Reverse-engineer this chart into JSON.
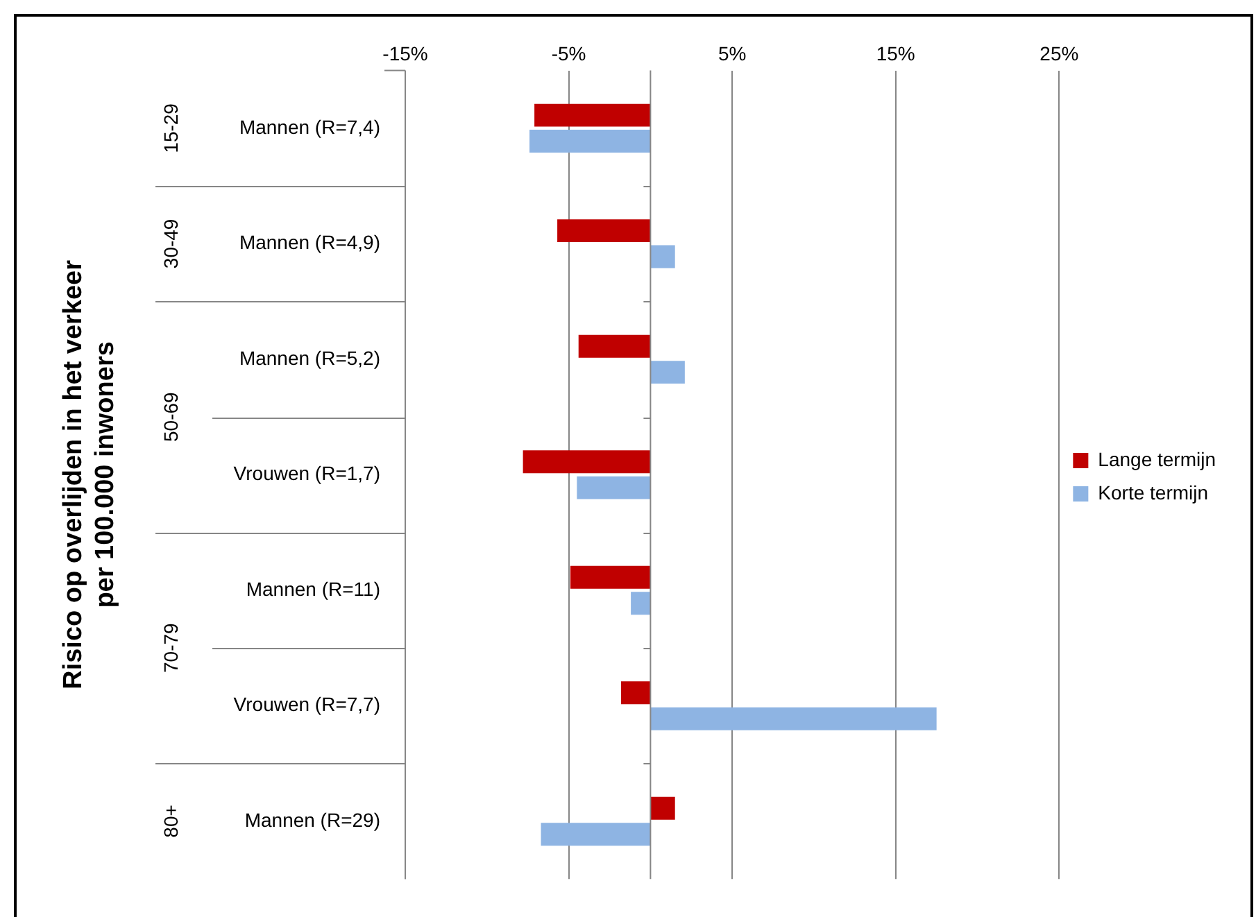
{
  "chart_data": {
    "type": "bar",
    "orientation": "horizontal",
    "ylabel": "Risico op overlijden in het verkeer\nper 100.000 inwoners",
    "categories": [
      "Mannen (R=7,4)",
      "Mannen (R=4,9)",
      "Mannen (R=5,2)",
      "Vrouwen (R=1,7)",
      "Mannen (R=11)",
      "Vrouwen (R=7,7)",
      "Mannen (R=29)"
    ],
    "series": [
      {
        "name": "Lange termijn",
        "color": "#c00000",
        "values": [
          -7.1,
          -5.7,
          -4.4,
          -7.8,
          -4.9,
          -1.8,
          1.5
        ]
      },
      {
        "name": "Korte termijn",
        "color": "#8eb4e3",
        "values": [
          -7.4,
          1.5,
          2.1,
          -4.5,
          -1.2,
          17.5,
          -6.7
        ]
      }
    ],
    "xlim": [
      -15,
      25
    ],
    "xticks": [
      {
        "value": -15,
        "label": "-15%"
      },
      {
        "value": -5,
        "label": "-5%"
      },
      {
        "value": 5,
        "label": "5%"
      },
      {
        "value": 15,
        "label": "15%"
      },
      {
        "value": 25,
        "label": "25%"
      }
    ],
    "annotations": [
      "15-29",
      "30-49",
      "50-69",
      "70-79",
      "80+"
    ],
    "grid": "x",
    "legend": "right"
  }
}
